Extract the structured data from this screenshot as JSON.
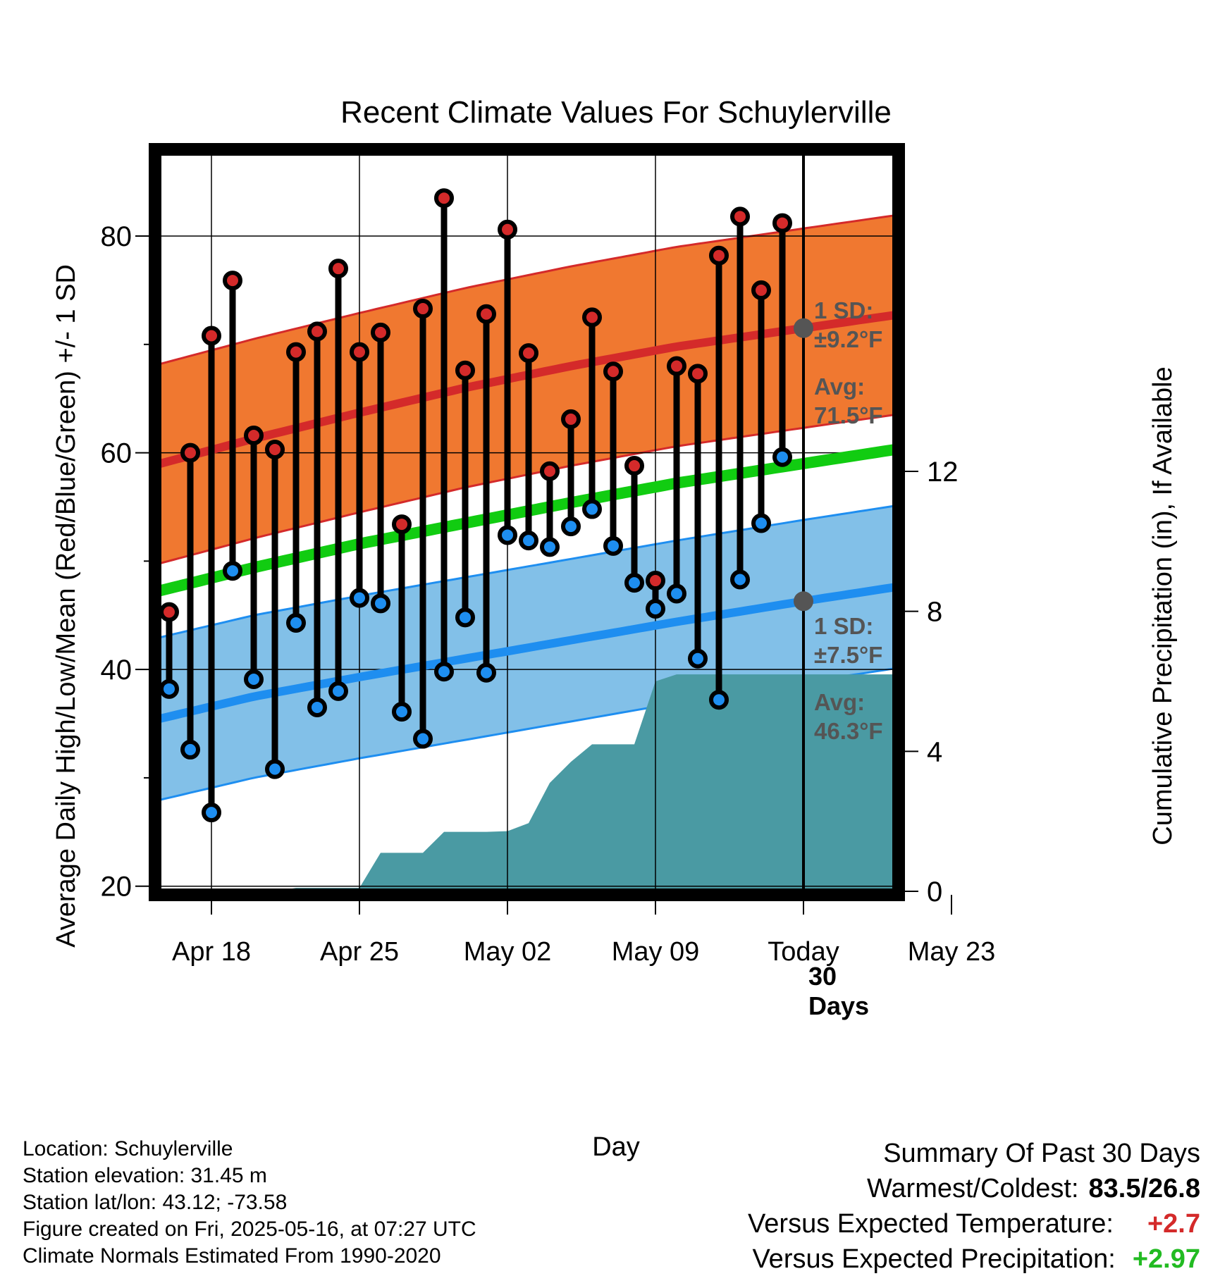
{
  "chart_data": {
    "type": "line",
    "title": "Recent Climate Values For Schuylerville",
    "xlabel": "Day",
    "ylabel": "Average Daily High/Low/Mean (Red/Blue/Green) +/- 1 SD",
    "y2label": "Cumulative Precipitation (in), If Available",
    "x_tick_labels": [
      "Apr 18",
      "Apr 25",
      "May 02",
      "May 09",
      "Today",
      "May 23"
    ],
    "x_tick_days": [
      1,
      8,
      15,
      22,
      29,
      36
    ],
    "x_range_days": [
      -2,
      38.8
    ],
    "ylim": [
      19.2,
      88
    ],
    "y_ticks": [
      20,
      40,
      60,
      80
    ],
    "y_minor_ticks": [
      30,
      50,
      70
    ],
    "y2lim": [
      -0.1,
      21.2
    ],
    "y2_ticks": [
      0,
      4,
      8,
      12
    ],
    "today_day": 29,
    "today_label": "30\nDays",
    "high_normal": {
      "label_sd": "1 SD:",
      "sd_text": "±9.2°F",
      "label_avg": "Avg:",
      "avg_text": "71.5°F",
      "avg_curve": [
        [
          -2,
          58.7
        ],
        [
          3,
          61.3
        ],
        [
          8,
          63.7
        ],
        [
          13,
          66.0
        ],
        [
          18,
          68.0
        ],
        [
          23,
          69.8
        ],
        [
          29,
          71.5
        ],
        [
          34,
          72.9
        ],
        [
          38.8,
          74.1
        ]
      ],
      "sd": 9.2,
      "colors": {
        "band": "#f07830",
        "line": "#d42a2a",
        "edge": "#d42a2a"
      }
    },
    "low_normal": {
      "label_sd": "1 SD:",
      "sd_text": "±7.5°F",
      "label_avg": "Avg:",
      "avg_text": "46.3°F",
      "avg_curve": [
        [
          -2,
          35.2
        ],
        [
          3,
          37.5
        ],
        [
          8,
          39.3
        ],
        [
          13,
          41.0
        ],
        [
          18,
          42.7
        ],
        [
          23,
          44.4
        ],
        [
          29,
          46.3
        ],
        [
          34,
          47.8
        ],
        [
          38.8,
          49.3
        ]
      ],
      "sd": 7.5,
      "colors": {
        "band": "#82c0e8",
        "line": "#1e8ef0",
        "edge": "#1e8ef0"
      }
    },
    "mean_normal": {
      "curve": [
        [
          -2,
          47.0
        ],
        [
          3,
          49.4
        ],
        [
          8,
          51.6
        ],
        [
          13,
          53.5
        ],
        [
          18,
          55.4
        ],
        [
          23,
          57.2
        ],
        [
          29,
          59.0
        ],
        [
          34,
          60.5
        ],
        [
          38.8,
          61.9
        ]
      ],
      "color": "#11cc11"
    },
    "series": [
      {
        "name": "Daily High",
        "color": "#d42a2a",
        "x": [
          -1,
          0,
          1,
          2,
          3,
          4,
          5,
          6,
          7,
          8,
          9,
          10,
          11,
          12,
          13,
          14,
          15,
          16,
          17,
          18,
          19,
          20,
          21,
          22,
          23,
          24,
          25,
          26,
          27,
          28
        ],
        "values": [
          45.3,
          60.0,
          70.8,
          75.9,
          61.6,
          60.3,
          69.3,
          71.2,
          77.0,
          69.3,
          71.1,
          53.4,
          73.3,
          83.5,
          67.6,
          72.8,
          80.6,
          69.2,
          58.3,
          63.1,
          72.5,
          67.5,
          58.8,
          48.2,
          68.0,
          67.3,
          78.2,
          81.8,
          75.0,
          81.2
        ]
      },
      {
        "name": "Daily Low",
        "color": "#1e8ef0",
        "x": [
          -1,
          0,
          1,
          2,
          3,
          4,
          5,
          6,
          7,
          8,
          9,
          10,
          11,
          12,
          13,
          14,
          15,
          16,
          17,
          18,
          19,
          20,
          21,
          22,
          23,
          24,
          25,
          26,
          27,
          28
        ],
        "values": [
          38.2,
          32.6,
          26.8,
          49.1,
          39.1,
          30.8,
          44.3,
          36.5,
          38.0,
          46.6,
          46.1,
          36.1,
          33.6,
          39.8,
          44.8,
          39.7,
          52.4,
          51.9,
          51.3,
          53.2,
          54.8,
          51.4,
          48.0,
          45.6,
          47.0,
          41.0,
          37.2,
          48.3,
          53.5,
          59.6
        ]
      }
    ],
    "precipitation": {
      "name": "Cumulative Precipitation",
      "color": "#4a9aa3",
      "x": [
        -2,
        4,
        5,
        6,
        7,
        8,
        9,
        10,
        11,
        12,
        13,
        14,
        15,
        16,
        17,
        18,
        19,
        20,
        21,
        22,
        23,
        24,
        25,
        26,
        27,
        28,
        29,
        38.8
      ],
      "values": [
        0,
        0,
        0.1,
        0.1,
        0.1,
        0.1,
        1.1,
        1.1,
        1.1,
        1.7,
        1.7,
        1.7,
        1.72,
        1.95,
        3.1,
        3.7,
        4.2,
        4.2,
        4.2,
        6.0,
        6.2,
        6.2,
        6.2,
        6.2,
        6.2,
        6.2,
        6.2,
        6.2
      ]
    }
  },
  "footer": {
    "location": "Location: Schuylerville",
    "elevation": "Station elevation: 31.45 m",
    "latlon": "Station lat/lon: 43.12; -73.58",
    "created": "Figure created on Fri, 2025-05-16, at 07:27 UTC",
    "normals": "Climate Normals Estimated From 1990-2020"
  },
  "summary": {
    "heading": "Summary Of Past 30 Days",
    "warm_cold_label": "Warmest/Coldest:",
    "warm_cold_value": "83.5/26.8",
    "temp_label": "Versus Expected Temperature:",
    "temp_value": "+2.7",
    "temp_color": "#d42a2a",
    "precip_label": "Versus Expected Precipitation:",
    "precip_value": "+2.97",
    "precip_color": "#22bb22"
  }
}
